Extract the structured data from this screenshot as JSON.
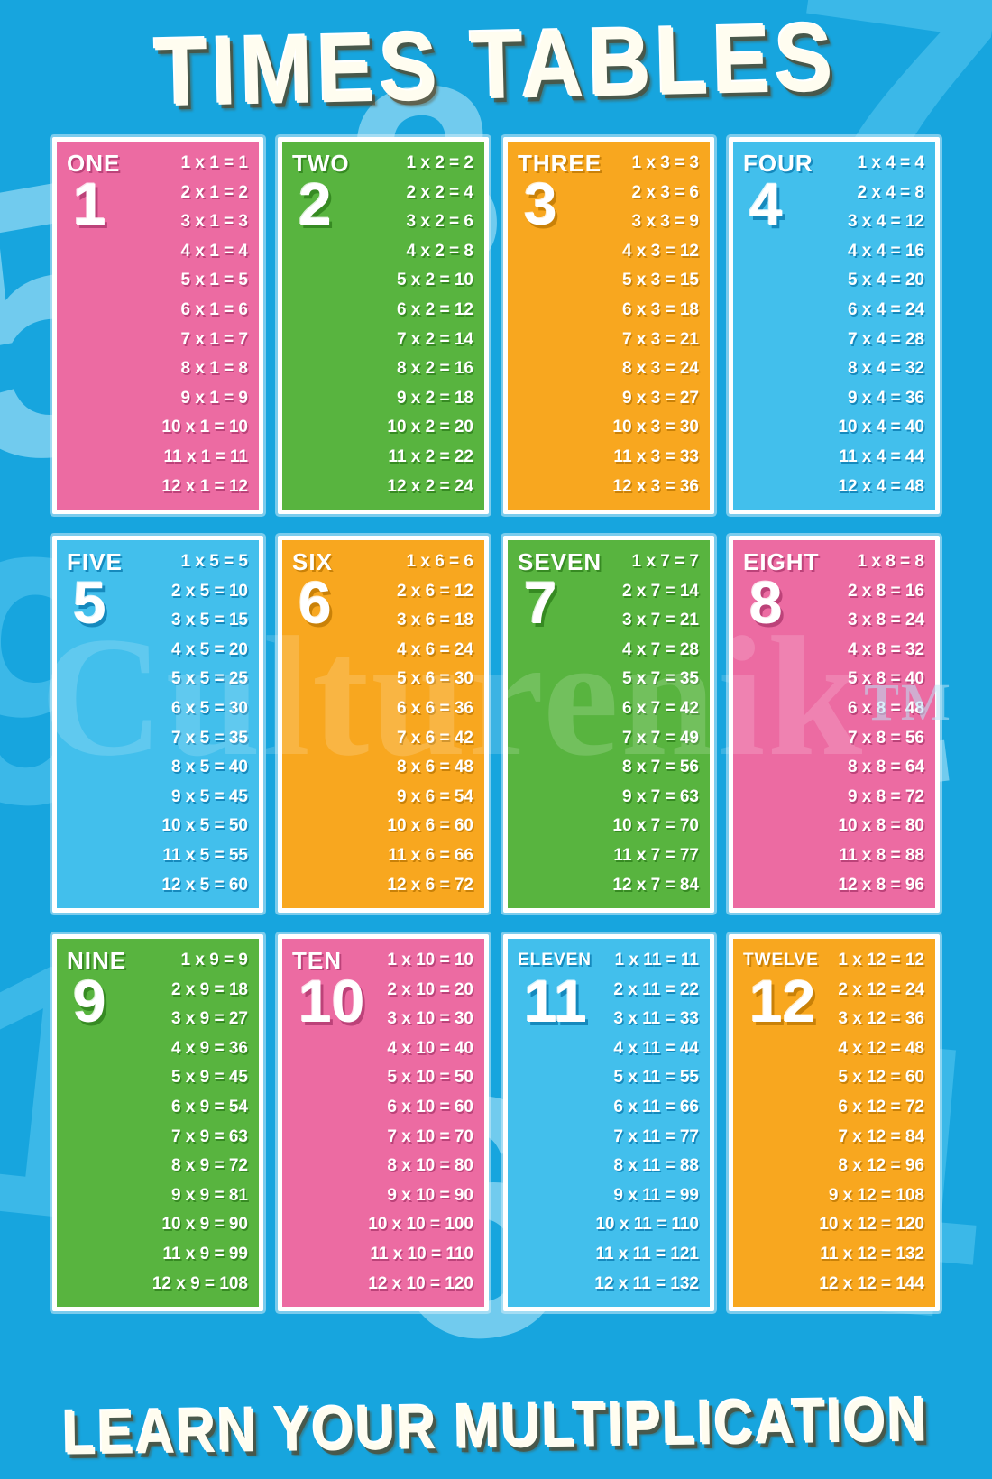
{
  "poster": {
    "title": "TIMES TABLES",
    "footer": "LEARN YOUR MULTIPLICATION",
    "watermark": "Culturenik",
    "watermark_tm": "TM"
  },
  "colors": {
    "background": "#17a5de",
    "pink": "#ec6ba2",
    "pink_dark": "#bc4279",
    "green": "#58b43f",
    "green_dark": "#368a22",
    "orange": "#f8a71f",
    "orange_dark": "#c98108",
    "blue": "#42bfec",
    "blue_dark": "#1589bd",
    "numeral_light": "#8fd8f4",
    "numeral_dark": "#4fc3ee"
  },
  "background_numerals": [
    "5",
    "7",
    "3",
    "9",
    "2",
    "1",
    "6",
    "4"
  ],
  "cards": [
    {
      "word": "ONE",
      "number": "1",
      "color": "pink",
      "equations": [
        "1 x 1 = 1",
        "2 x 1 = 2",
        "3 x 1 = 3",
        "4 x 1 = 4",
        "5 x 1 = 5",
        "6 x 1 = 6",
        "7 x 1 = 7",
        "8 x 1 = 8",
        "9 x 1 = 9",
        "10 x 1 = 10",
        "11 x 1 = 11",
        "12 x 1 = 12"
      ]
    },
    {
      "word": "TWO",
      "number": "2",
      "color": "green",
      "equations": [
        "1 x 2 = 2",
        "2 x 2 = 4",
        "3 x 2 = 6",
        "4 x 2 = 8",
        "5 x 2 = 10",
        "6 x 2 = 12",
        "7 x 2 = 14",
        "8 x 2 = 16",
        "9 x 2 = 18",
        "10 x 2 = 20",
        "11 x 2 = 22",
        "12 x 2 = 24"
      ]
    },
    {
      "word": "THREE",
      "number": "3",
      "color": "orange",
      "equations": [
        "1 x 3 = 3",
        "2 x 3 = 6",
        "3 x 3 = 9",
        "4 x 3 = 12",
        "5 x 3 = 15",
        "6 x 3 = 18",
        "7 x 3 = 21",
        "8 x 3 = 24",
        "9 x 3 = 27",
        "10 x 3 = 30",
        "11 x 3 = 33",
        "12 x 3 = 36"
      ]
    },
    {
      "word": "FOUR",
      "number": "4",
      "color": "blue",
      "equations": [
        "1 x 4 = 4",
        "2 x 4 = 8",
        "3 x 4 = 12",
        "4 x 4 = 16",
        "5 x 4 = 20",
        "6 x 4 = 24",
        "7 x 4 = 28",
        "8 x 4 = 32",
        "9 x 4 = 36",
        "10 x 4 = 40",
        "11 x 4 = 44",
        "12 x 4 = 48"
      ]
    },
    {
      "word": "FIVE",
      "number": "5",
      "color": "blue",
      "equations": [
        "1 x 5 = 5",
        "2 x 5 = 10",
        "3 x 5 = 15",
        "4 x 5 = 20",
        "5 x 5 = 25",
        "6 x 5 = 30",
        "7 x 5 = 35",
        "8 x 5 = 40",
        "9 x 5 = 45",
        "10 x 5 = 50",
        "11 x 5 = 55",
        "12 x 5 = 60"
      ]
    },
    {
      "word": "SIX",
      "number": "6",
      "color": "orange",
      "equations": [
        "1 x 6 = 6",
        "2 x 6 = 12",
        "3 x 6 = 18",
        "4 x 6 = 24",
        "5 x 6 = 30",
        "6 x 6 = 36",
        "7 x 6 = 42",
        "8 x 6 = 48",
        "9 x 6 = 54",
        "10 x 6 = 60",
        "11 x 6 = 66",
        "12 x 6 = 72"
      ]
    },
    {
      "word": "SEVEN",
      "number": "7",
      "color": "green",
      "equations": [
        "1 x 7 = 7",
        "2 x 7 = 14",
        "3 x 7 = 21",
        "4 x 7 = 28",
        "5 x 7 = 35",
        "6 x 7 = 42",
        "7 x 7 = 49",
        "8 x 7 = 56",
        "9 x 7 = 63",
        "10 x 7 = 70",
        "11 x 7 = 77",
        "12 x 7 = 84"
      ]
    },
    {
      "word": "EIGHT",
      "number": "8",
      "color": "pink",
      "equations": [
        "1 x 8 = 8",
        "2 x 8 = 16",
        "3 x 8 = 24",
        "4 x 8 = 32",
        "5 x 8 = 40",
        "6 x 8 = 48",
        "7 x 8 = 56",
        "8 x 8 = 64",
        "9 x 8 = 72",
        "10 x 8 = 80",
        "11 x 8 = 88",
        "12 x 8 = 96"
      ]
    },
    {
      "word": "NINE",
      "number": "9",
      "color": "green",
      "equations": [
        "1 x 9 = 9",
        "2 x 9 = 18",
        "3 x 9 = 27",
        "4 x 9 = 36",
        "5 x 9 = 45",
        "6 x 9 = 54",
        "7 x 9 = 63",
        "8 x 9 = 72",
        "9 x 9 = 81",
        "10 x 9 = 90",
        "11 x 9 = 99",
        "12 x 9 = 108"
      ]
    },
    {
      "word": "TEN",
      "number": "10",
      "color": "pink",
      "equations": [
        "1 x 10 = 10",
        "2 x 10 = 20",
        "3 x 10 = 30",
        "4 x 10 = 40",
        "5 x 10 = 50",
        "6 x 10 = 60",
        "7 x 10 = 70",
        "8 x 10 = 80",
        "9 x 10 = 90",
        "10 x 10 = 100",
        "11 x 10 = 110",
        "12 x 10 = 120"
      ]
    },
    {
      "word": "ELEVEN",
      "number": "11",
      "color": "blue",
      "equations": [
        "1 x 11 = 11",
        "2 x 11 = 22",
        "3 x 11 = 33",
        "4 x 11 = 44",
        "5 x 11 = 55",
        "6 x 11 = 66",
        "7 x 11 = 77",
        "8 x 11 = 88",
        "9 x 11 = 99",
        "10 x 11 = 110",
        "11 x 11 = 121",
        "12 x 11 = 132"
      ]
    },
    {
      "word": "TWELVE",
      "number": "12",
      "color": "orange",
      "equations": [
        "1 x 12 = 12",
        "2 x 12 = 24",
        "3 x 12 = 36",
        "4 x 12 = 48",
        "5 x 12 = 60",
        "6 x 12 = 72",
        "7 x 12 = 84",
        "8 x 12 = 96",
        "9 x 12 = 108",
        "10 x 12 = 120",
        "11 x 12 = 132",
        "12 x 12 = 144"
      ]
    }
  ]
}
